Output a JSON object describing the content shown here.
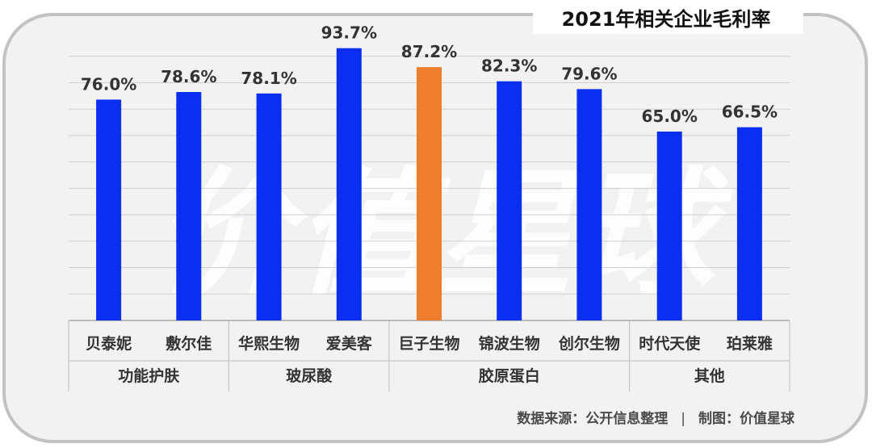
{
  "title": "2021年相关企业毛利率",
  "watermark": "价值星球",
  "footer": {
    "source": "数据来源：公开信息整理",
    "separator": "|",
    "credit": "制图：价值星球"
  },
  "colors": {
    "bar": "#0b2ff0",
    "highlight": "#ef7d2e",
    "grid": "#cfcfcf",
    "frame": "#c2c2c2",
    "background": "#f2f2f2"
  },
  "chart_data": {
    "type": "bar",
    "title": "2021年相关企业毛利率",
    "xlabel": "",
    "ylabel": "",
    "ylim": [
      0,
      100
    ],
    "grid": true,
    "value_suffix": "%",
    "categories": [
      "贝泰妮",
      "敷尔佳",
      "华熙生物",
      "爱美客",
      "巨子生物",
      "锦波生物",
      "创尔生物",
      "时代天使",
      "珀莱雅"
    ],
    "values": [
      76.0,
      78.6,
      78.1,
      93.7,
      87.2,
      82.3,
      79.6,
      65.0,
      66.5
    ],
    "data_labels": [
      "76.0%",
      "78.6%",
      "78.1%",
      "93.7%",
      "87.2%",
      "82.3%",
      "79.6%",
      "65.0%",
      "66.5%"
    ],
    "highlight_index": 4,
    "groups": [
      {
        "label": "功能护肤",
        "count": 2
      },
      {
        "label": "玻尿酸",
        "count": 2
      },
      {
        "label": "胶原蛋白",
        "count": 3
      },
      {
        "label": "其他",
        "count": 2
      }
    ]
  }
}
